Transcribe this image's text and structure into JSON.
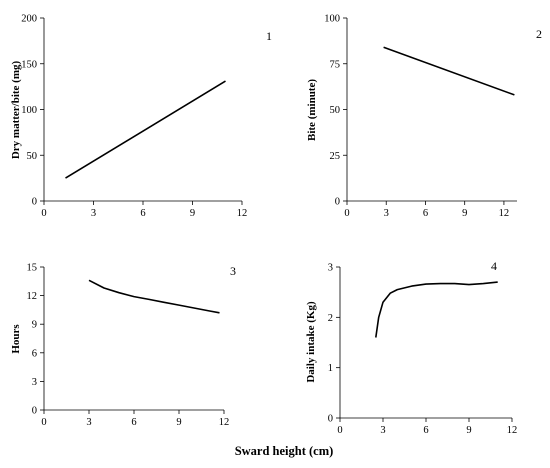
{
  "figure": {
    "xlabel": "Sward height (cm)"
  },
  "chart_data": [
    {
      "type": "line",
      "number": "1",
      "ylabel": "Dry matter/bite (mg)",
      "xlim": [
        0,
        12
      ],
      "ylim": [
        0,
        200
      ],
      "xticks": [
        "0",
        "3",
        "6",
        "9",
        "12"
      ],
      "yticks": [
        "0",
        "50",
        "100",
        "150",
        "200"
      ],
      "series": [
        {
          "x": [
            1.3,
            11.0
          ],
          "y": [
            25,
            131
          ]
        }
      ]
    },
    {
      "type": "line",
      "number": "2",
      "ylabel": "Bite (minute)",
      "xlim": [
        0,
        13
      ],
      "ylim": [
        0,
        100
      ],
      "xticks": [
        "0",
        "3",
        "6",
        "9",
        "12"
      ],
      "yticks": [
        "0",
        "25",
        "50",
        "75",
        "100"
      ],
      "series": [
        {
          "x": [
            2.8,
            12.8
          ],
          "y": [
            84,
            58
          ]
        }
      ]
    },
    {
      "type": "line",
      "number": "3",
      "ylabel": "Hours",
      "xlim": [
        0,
        12
      ],
      "ylim": [
        0,
        15
      ],
      "xticks": [
        "0",
        "3",
        "6",
        "9",
        "12"
      ],
      "yticks": [
        "0",
        "3",
        "6",
        "9",
        "12",
        "15"
      ],
      "series": [
        {
          "x": [
            3.0,
            4.0,
            5.0,
            6.0,
            7.0,
            8.0,
            9.0,
            10.0,
            11.0,
            11.7
          ],
          "y": [
            13.6,
            12.8,
            12.3,
            11.9,
            11.6,
            11.3,
            11.0,
            10.7,
            10.4,
            10.2
          ]
        }
      ]
    },
    {
      "type": "line",
      "number": "4",
      "ylabel": "Daily intake (Kg)",
      "xlim": [
        0,
        12
      ],
      "ylim": [
        0,
        3
      ],
      "xticks": [
        "0",
        "3",
        "6",
        "9",
        "12"
      ],
      "yticks": [
        "0",
        "1",
        "2",
        "3"
      ],
      "series": [
        {
          "x": [
            2.5,
            2.7,
            3.0,
            3.5,
            4.0,
            5.0,
            6.0,
            7.0,
            8.0,
            9.0,
            10.0,
            11.0
          ],
          "y": [
            1.6,
            2.0,
            2.3,
            2.48,
            2.55,
            2.62,
            2.66,
            2.67,
            2.67,
            2.65,
            2.67,
            2.7
          ]
        }
      ]
    }
  ]
}
